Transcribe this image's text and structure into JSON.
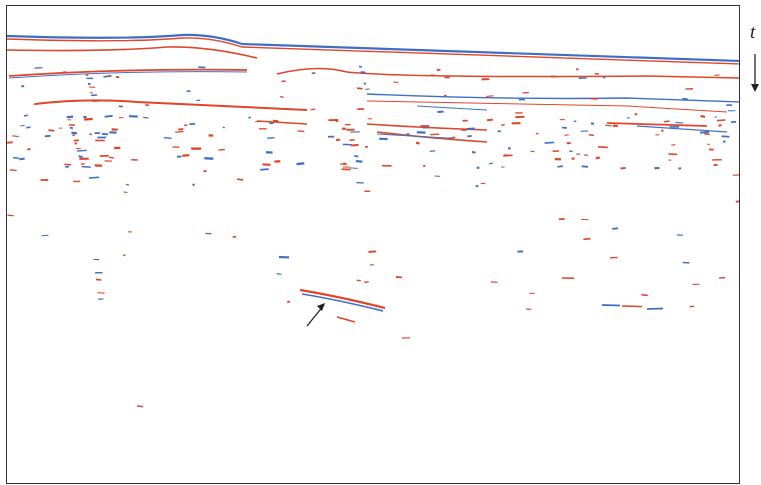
{
  "axis": {
    "time_label": "t"
  },
  "colors": {
    "positive": "#e0452a",
    "negative": "#3f6fc4",
    "frame": "#333333",
    "arrow": "#222222"
  }
}
